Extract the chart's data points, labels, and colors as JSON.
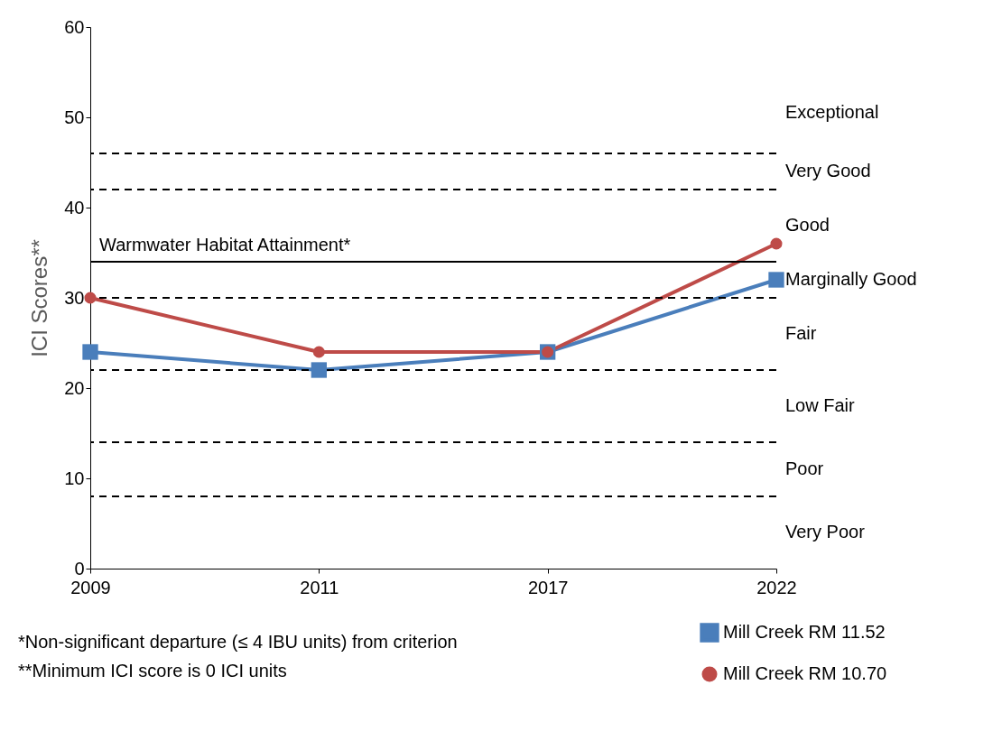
{
  "chart_data": {
    "type": "line",
    "ylabel": "ICI Scores**",
    "categories": [
      "2009",
      "2011",
      "2017",
      "2022"
    ],
    "series": [
      {
        "name": "Mill Creek RM 11.52",
        "color": "#4a7ebb",
        "marker": "square",
        "values": [
          24,
          22,
          24,
          32
        ]
      },
      {
        "name": "Mill Creek RM 10.70",
        "color": "#be4b48",
        "marker": "circle",
        "values": [
          30,
          24,
          24,
          36
        ]
      }
    ],
    "ylim": [
      0,
      60
    ],
    "yticks": [
      0,
      10,
      20,
      30,
      40,
      50,
      60
    ],
    "grid": false,
    "legend": "bottom right",
    "line_style": "solid",
    "ref_lines": [
      {
        "axis": "y",
        "value": 46,
        "line_style": "dashed",
        "color": "#000000"
      },
      {
        "axis": "y",
        "value": 42,
        "line_style": "dashed",
        "color": "#000000"
      },
      {
        "axis": "y",
        "value": 34,
        "line_style": "solid",
        "color": "#000000",
        "label": "Warmwater Habitat Attainment*"
      },
      {
        "axis": "y",
        "value": 30,
        "line_style": "dashed",
        "color": "#000000"
      },
      {
        "axis": "y",
        "value": 22,
        "line_style": "dashed",
        "color": "#000000"
      },
      {
        "axis": "y",
        "value": 14,
        "line_style": "dashed",
        "color": "#000000"
      },
      {
        "axis": "y",
        "value": 8,
        "line_style": "dashed",
        "color": "#000000"
      }
    ],
    "annotations": [
      "Exceptional",
      "Very Good",
      "Good",
      "Marginally Good",
      "Fair",
      "Low Fair",
      "Poor",
      "Very Poor",
      "*Non-significant departure (≤ 4 IBU units) from criterion",
      "**Minimum ICI score is 0 ICI units"
    ]
  }
}
